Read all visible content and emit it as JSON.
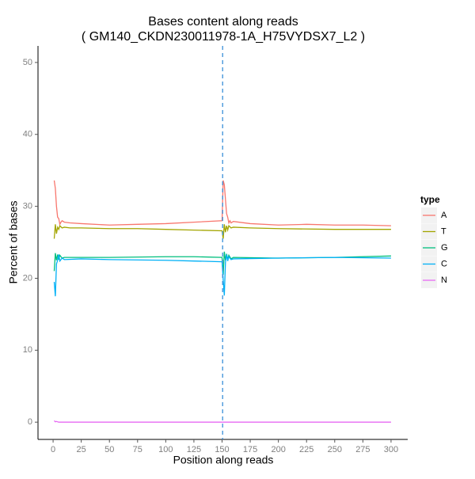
{
  "chart_data": {
    "type": "line",
    "title": "Bases content along reads",
    "subtitle": "( GM140_CKDN230011978-1A_H75VYDSX7_L2 )",
    "x_label": "Position along reads",
    "y_label": "Percent of bases",
    "legend_title": "type",
    "legend_position": "right",
    "grid": false,
    "vline_x": 150.5,
    "vline_color": "#3a8fd9",
    "xlim": [
      -13.4,
      314.8
    ],
    "ylim": [
      -2.4,
      52.3
    ],
    "xticks": [
      0,
      25,
      50,
      75,
      100,
      125,
      150,
      175,
      200,
      225,
      250,
      275,
      300
    ],
    "yticks": [
      0,
      10,
      20,
      30,
      40,
      50
    ],
    "series": [
      {
        "name": "A",
        "color": "#F8766D",
        "x": [
          1,
          2,
          3,
          4,
          5,
          6,
          7,
          8,
          10,
          15,
          25,
          50,
          75,
          100,
          125,
          150,
          151,
          152,
          153,
          154,
          155,
          156,
          157,
          158,
          160,
          175,
          200,
          225,
          250,
          275,
          300
        ],
        "values": [
          33.6,
          32.5,
          30,
          28.5,
          28.3,
          27.5,
          27.8,
          28,
          27.8,
          27.7,
          27.6,
          27.4,
          27.5,
          27.6,
          27.8,
          28.0,
          33.6,
          33.0,
          31,
          29,
          28.5,
          27.7,
          28,
          27.7,
          27.9,
          27.6,
          27.4,
          27.5,
          27.4,
          27.4,
          27.3
        ]
      },
      {
        "name": "T",
        "color": "#A3A500",
        "x": [
          1,
          2,
          3,
          4,
          5,
          6,
          8,
          10,
          15,
          25,
          50,
          75,
          100,
          125,
          150,
          151,
          152,
          153,
          154,
          155,
          156,
          158,
          160,
          175,
          200,
          250,
          300
        ],
        "values": [
          25.5,
          27.5,
          26.2,
          27.1,
          26.8,
          27.3,
          27.0,
          27.1,
          27.0,
          27.0,
          26.9,
          26.9,
          26.8,
          26.7,
          26.6,
          25.5,
          27.5,
          26.4,
          27.3,
          26.7,
          27.3,
          27.0,
          27.1,
          27.0,
          26.9,
          26.8,
          26.8
        ]
      },
      {
        "name": "G",
        "color": "#00BF7D",
        "x": [
          1,
          2,
          3,
          4,
          5,
          6,
          8,
          10,
          25,
          50,
          100,
          125,
          150,
          151,
          152,
          153,
          154,
          155,
          156,
          158,
          160,
          200,
          250,
          300
        ],
        "values": [
          21.0,
          23.5,
          22.5,
          23.3,
          22.6,
          23.2,
          22.8,
          22.9,
          22.9,
          22.9,
          23.0,
          23.0,
          22.9,
          20.5,
          23.7,
          22.5,
          23.4,
          22.6,
          23.2,
          22.7,
          22.9,
          22.8,
          22.9,
          23.1
        ]
      },
      {
        "name": "C",
        "color": "#00B0F6",
        "x": [
          1,
          2,
          3,
          4,
          5,
          6,
          8,
          10,
          25,
          50,
          100,
          125,
          150,
          151,
          152,
          153,
          154,
          155,
          156,
          158,
          160,
          200,
          250,
          300
        ],
        "values": [
          19.5,
          17.5,
          22.0,
          22.5,
          23.3,
          22.4,
          22.8,
          22.6,
          22.7,
          22.6,
          22.5,
          22.4,
          22.3,
          19.8,
          17.6,
          22.2,
          23.3,
          22.4,
          23.0,
          22.6,
          22.7,
          22.8,
          22.9,
          22.8
        ]
      },
      {
        "name": "N",
        "color": "#E76BF3",
        "x": [
          1,
          2,
          3,
          5,
          300
        ],
        "values": [
          0.2,
          0.05,
          0.1,
          0.0,
          0.0
        ]
      }
    ]
  }
}
